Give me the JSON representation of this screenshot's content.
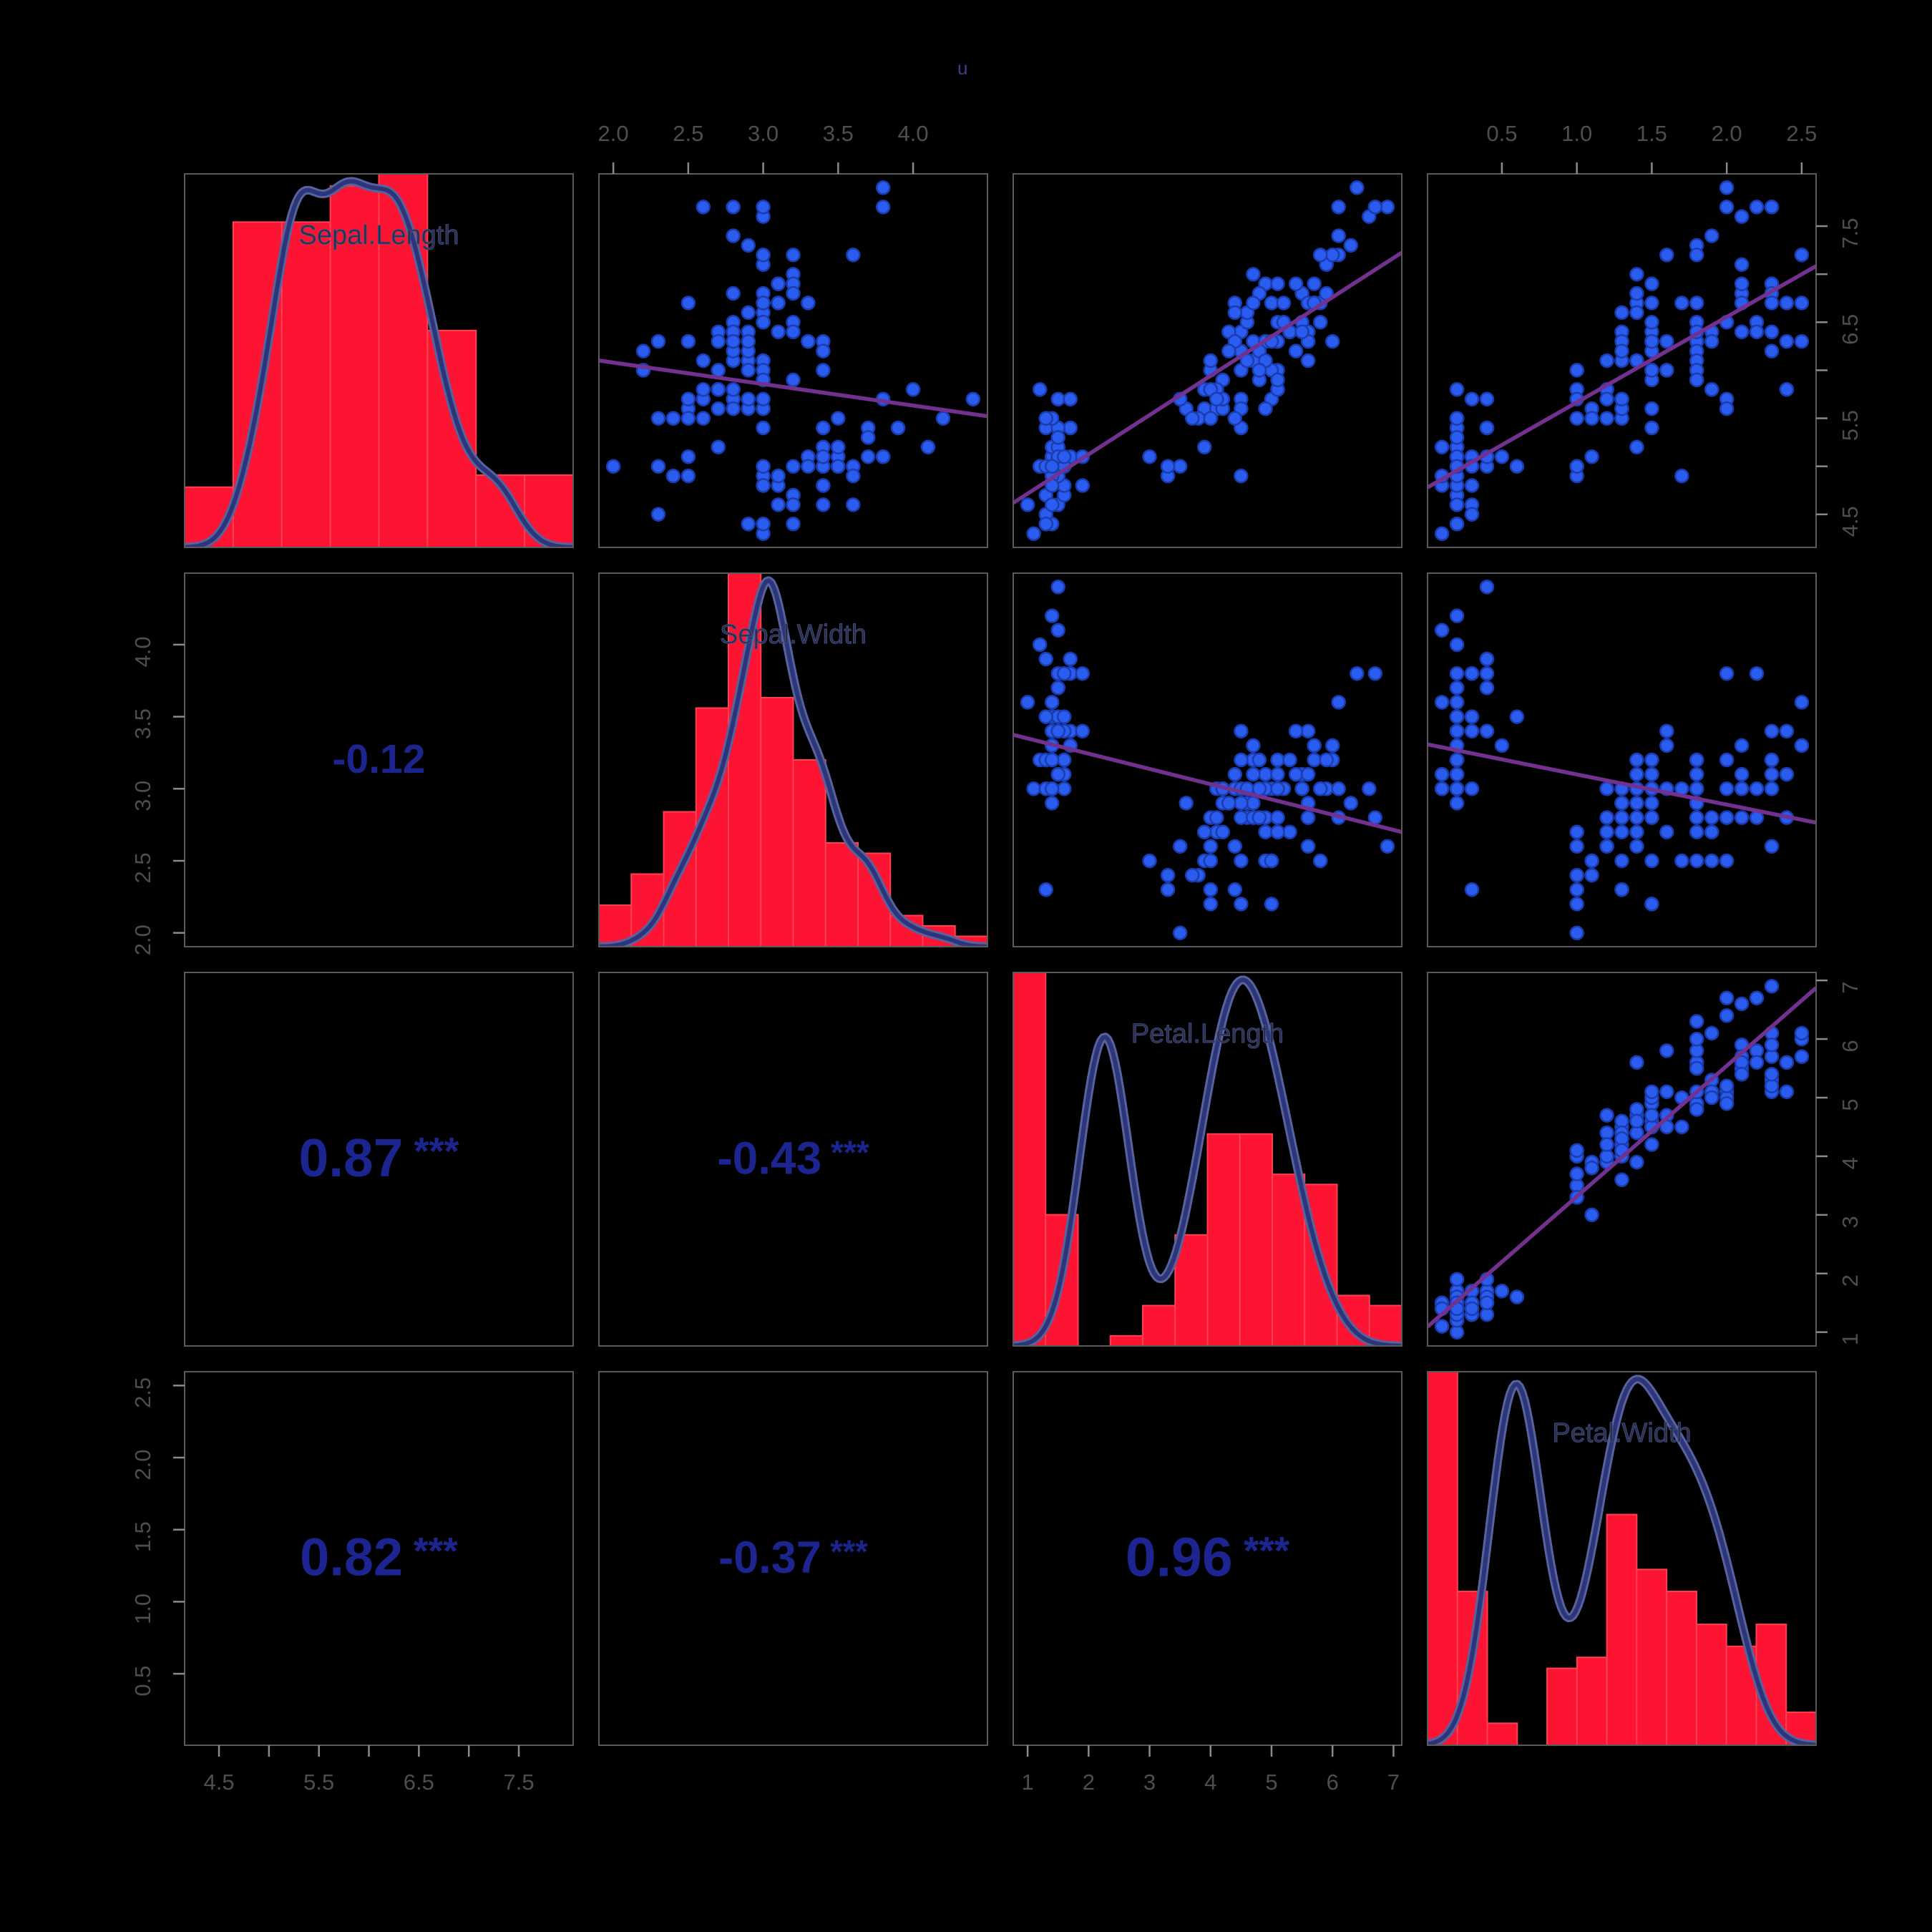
{
  "title_fragment": "u",
  "chart_data": {
    "type": "scatter",
    "subtype": "scatterplot-matrix-pairs-panels",
    "title": "",
    "variables": [
      "Sepal.Length",
      "Sepal.Width",
      "Petal.Length",
      "Petal.Width"
    ],
    "diagonal": "histogram-with-density",
    "upper_triangle": "scatter-with-regression-line",
    "lower_triangle": "correlation-values",
    "observations": {
      "Sepal.Length": [
        5.1,
        4.9,
        4.7,
        4.6,
        5.0,
        5.4,
        4.6,
        5.0,
        4.4,
        4.9,
        5.4,
        4.8,
        4.8,
        4.3,
        5.8,
        5.7,
        5.4,
        5.1,
        5.7,
        5.1,
        5.4,
        5.1,
        4.6,
        5.1,
        4.8,
        5.0,
        5.0,
        5.2,
        5.2,
        4.7,
        4.8,
        5.4,
        5.2,
        5.5,
        4.9,
        5.0,
        5.5,
        4.9,
        4.4,
        5.1,
        5.0,
        4.5,
        4.4,
        5.0,
        5.1,
        4.8,
        5.1,
        4.6,
        5.3,
        5.0,
        7.0,
        6.4,
        6.9,
        5.5,
        6.5,
        5.7,
        6.3,
        4.9,
        6.6,
        5.2,
        5.0,
        5.9,
        6.0,
        6.1,
        5.6,
        6.7,
        5.6,
        5.8,
        6.2,
        5.6,
        5.9,
        6.1,
        6.3,
        6.1,
        6.4,
        6.6,
        6.8,
        6.7,
        6.0,
        5.7,
        5.5,
        5.5,
        5.8,
        6.0,
        5.4,
        6.0,
        6.7,
        6.3,
        5.6,
        5.5,
        5.5,
        6.1,
        5.8,
        5.0,
        5.6,
        5.7,
        5.7,
        6.2,
        5.1,
        5.7,
        6.3,
        5.8,
        7.1,
        6.3,
        6.5,
        7.6,
        4.9,
        7.3,
        6.7,
        7.2,
        6.5,
        6.4,
        6.8,
        5.7,
        5.8,
        6.4,
        6.5,
        7.7,
        7.7,
        6.0,
        6.9,
        5.6,
        7.7,
        6.3,
        6.7,
        7.2,
        6.2,
        6.1,
        6.4,
        7.2,
        7.4,
        7.9,
        6.4,
        6.3,
        6.1,
        7.7,
        6.3,
        6.4,
        6.0,
        6.9,
        6.7,
        6.9,
        5.8,
        6.8,
        6.7,
        6.7,
        6.3,
        6.5,
        6.2,
        5.9
      ],
      "Sepal.Width": [
        3.5,
        3.0,
        3.2,
        3.1,
        3.6,
        3.9,
        3.4,
        3.4,
        2.9,
        3.1,
        3.7,
        3.4,
        3.0,
        3.0,
        4.0,
        4.4,
        3.9,
        3.5,
        3.8,
        3.8,
        3.4,
        3.7,
        3.6,
        3.3,
        3.4,
        3.0,
        3.4,
        3.5,
        3.4,
        3.2,
        3.1,
        3.4,
        4.1,
        4.2,
        3.1,
        3.2,
        3.5,
        3.6,
        3.0,
        3.4,
        3.5,
        2.3,
        3.2,
        3.5,
        3.8,
        3.0,
        3.8,
        3.2,
        3.7,
        3.3,
        3.2,
        3.2,
        3.1,
        2.3,
        2.8,
        2.8,
        3.3,
        2.4,
        2.9,
        2.7,
        2.0,
        3.0,
        2.2,
        2.9,
        2.9,
        3.1,
        3.0,
        2.7,
        2.2,
        2.5,
        3.2,
        2.8,
        2.5,
        2.8,
        2.9,
        3.0,
        2.8,
        3.0,
        2.9,
        2.6,
        2.4,
        2.4,
        2.7,
        2.7,
        3.0,
        3.4,
        3.1,
        2.3,
        3.0,
        2.5,
        2.6,
        3.0,
        2.6,
        2.3,
        2.7,
        3.0,
        2.9,
        2.9,
        2.5,
        2.8,
        3.3,
        2.7,
        3.0,
        2.9,
        3.0,
        3.0,
        2.5,
        2.9,
        2.5,
        3.6,
        3.2,
        2.7,
        3.0,
        2.5,
        2.8,
        3.2,
        3.0,
        3.8,
        2.6,
        2.2,
        3.2,
        2.8,
        2.8,
        2.7,
        3.3,
        3.2,
        2.8,
        3.0,
        2.8,
        3.0,
        2.8,
        3.8,
        2.8,
        2.8,
        2.6,
        3.0,
        3.4,
        3.1,
        3.0,
        3.1,
        3.1,
        3.1,
        2.7,
        3.2,
        3.3,
        3.0,
        2.5,
        3.0,
        3.4,
        3.0
      ],
      "Petal.Length": [
        1.4,
        1.4,
        1.3,
        1.5,
        1.4,
        1.7,
        1.4,
        1.5,
        1.4,
        1.5,
        1.5,
        1.6,
        1.4,
        1.1,
        1.2,
        1.5,
        1.3,
        1.4,
        1.7,
        1.5,
        1.7,
        1.5,
        1.0,
        1.7,
        1.9,
        1.6,
        1.6,
        1.5,
        1.4,
        1.6,
        1.6,
        1.5,
        1.5,
        1.4,
        1.5,
        1.2,
        1.3,
        1.4,
        1.3,
        1.5,
        1.3,
        1.3,
        1.3,
        1.6,
        1.9,
        1.4,
        1.6,
        1.4,
        1.5,
        1.4,
        4.7,
        4.5,
        4.9,
        4.0,
        4.6,
        4.5,
        4.7,
        3.3,
        4.6,
        3.9,
        3.5,
        4.2,
        4.0,
        4.7,
        3.6,
        4.4,
        4.5,
        4.1,
        4.5,
        3.9,
        4.8,
        4.0,
        4.9,
        4.7,
        4.3,
        4.4,
        4.8,
        5.0,
        4.5,
        3.5,
        3.8,
        3.7,
        3.9,
        5.1,
        4.5,
        4.5,
        4.7,
        4.4,
        4.1,
        4.0,
        4.4,
        4.6,
        4.0,
        3.3,
        4.2,
        4.2,
        4.2,
        4.3,
        3.0,
        4.1,
        6.0,
        5.1,
        5.9,
        5.6,
        5.8,
        6.6,
        4.5,
        6.3,
        5.8,
        6.1,
        5.1,
        5.3,
        5.5,
        5.0,
        5.1,
        5.3,
        5.5,
        6.7,
        6.9,
        5.0,
        5.7,
        4.9,
        6.7,
        4.9,
        5.7,
        6.0,
        4.8,
        4.9,
        5.6,
        5.8,
        6.1,
        6.4,
        5.6,
        5.1,
        5.6,
        6.1,
        5.6,
        5.5,
        4.8,
        5.4,
        5.6,
        5.1,
        5.1,
        5.9,
        5.7,
        5.2,
        5.0,
        5.2,
        5.4,
        5.1
      ],
      "Petal.Width": [
        0.2,
        0.2,
        0.2,
        0.2,
        0.2,
        0.4,
        0.3,
        0.2,
        0.2,
        0.1,
        0.2,
        0.2,
        0.1,
        0.1,
        0.2,
        0.4,
        0.4,
        0.3,
        0.3,
        0.3,
        0.2,
        0.4,
        0.2,
        0.5,
        0.2,
        0.2,
        0.4,
        0.2,
        0.2,
        0.2,
        0.2,
        0.4,
        0.1,
        0.2,
        0.2,
        0.2,
        0.2,
        0.1,
        0.2,
        0.2,
        0.3,
        0.3,
        0.2,
        0.6,
        0.4,
        0.3,
        0.2,
        0.2,
        0.2,
        0.2,
        1.4,
        1.5,
        1.5,
        1.3,
        1.5,
        1.3,
        1.6,
        1.0,
        1.3,
        1.4,
        1.0,
        1.5,
        1.0,
        1.4,
        1.3,
        1.4,
        1.5,
        1.0,
        1.5,
        1.1,
        1.8,
        1.3,
        1.5,
        1.2,
        1.3,
        1.4,
        1.4,
        1.7,
        1.5,
        1.0,
        1.1,
        1.0,
        1.2,
        1.6,
        1.5,
        1.6,
        1.5,
        1.3,
        1.3,
        1.3,
        1.2,
        1.4,
        1.2,
        1.0,
        1.3,
        1.2,
        1.3,
        1.3,
        1.1,
        1.3,
        2.5,
        1.9,
        2.1,
        1.8,
        2.2,
        2.1,
        1.7,
        1.8,
        1.8,
        2.5,
        2.0,
        1.9,
        2.1,
        2.0,
        2.4,
        2.3,
        1.8,
        2.2,
        2.3,
        1.5,
        2.3,
        2.0,
        2.0,
        1.8,
        2.1,
        1.8,
        1.8,
        1.8,
        2.1,
        1.6,
        1.9,
        2.0,
        2.2,
        1.5,
        1.4,
        2.3,
        2.4,
        1.8,
        1.8,
        2.1,
        2.4,
        2.3,
        1.9,
        2.3,
        2.5,
        2.3,
        1.9,
        2.0,
        2.3,
        1.8
      ]
    },
    "correlations": [
      {
        "row_var": "Sepal.Width",
        "col_var": "Sepal.Length",
        "value": "-0.12",
        "stars": ""
      },
      {
        "row_var": "Petal.Length",
        "col_var": "Sepal.Length",
        "value": "0.87",
        "stars": "***"
      },
      {
        "row_var": "Petal.Length",
        "col_var": "Sepal.Width",
        "value": "-0.43",
        "stars": "***"
      },
      {
        "row_var": "Petal.Width",
        "col_var": "Sepal.Length",
        "value": "0.82",
        "stars": "***"
      },
      {
        "row_var": "Petal.Width",
        "col_var": "Sepal.Width",
        "value": "-0.37",
        "stars": "***"
      },
      {
        "row_var": "Petal.Width",
        "col_var": "Petal.Length",
        "value": "0.96",
        "stars": "***"
      }
    ],
    "histogram_breaks": {
      "Sepal.Length": {
        "start": 4.0,
        "end": 8.0,
        "step": 0.5
      },
      "Sepal.Width": {
        "start": 2.0,
        "end": 4.4,
        "step": 0.2
      },
      "Petal.Length": {
        "start": 1.0,
        "end": 7.0,
        "step": 0.5
      },
      "Petal.Width": {
        "start": 0.0,
        "end": 2.6,
        "step": 0.2
      }
    },
    "axes": {
      "top": [
        {
          "column": 2,
          "variable": "Sepal.Width",
          "ticks": [
            2.0,
            2.5,
            3.0,
            3.5,
            4.0
          ],
          "labels": [
            "2.0",
            "2.5",
            "3.0",
            "3.5",
            "4.0"
          ]
        },
        {
          "column": 4,
          "variable": "Petal.Width",
          "ticks": [
            0.5,
            1.0,
            1.5,
            2.0,
            2.5
          ],
          "labels": [
            "0.5",
            "1.0",
            "1.5",
            "2.0",
            "2.5"
          ]
        }
      ],
      "bottom": [
        {
          "column": 1,
          "variable": "Sepal.Length",
          "ticks": [
            4.5,
            5.0,
            5.5,
            6.0,
            6.5,
            7.0,
            7.5
          ],
          "labels": [
            "4.5",
            "",
            "5.5",
            "",
            "6.5",
            "",
            "7.5"
          ]
        },
        {
          "column": 3,
          "variable": "Petal.Length",
          "ticks": [
            1,
            2,
            3,
            4,
            5,
            6,
            7
          ],
          "labels": [
            "1",
            "2",
            "3",
            "4",
            "5",
            "6",
            "7"
          ]
        }
      ],
      "left": [
        {
          "row": 2,
          "variable": "Sepal.Width",
          "ticks": [
            2.0,
            2.5,
            3.0,
            3.5,
            4.0
          ],
          "labels": [
            "2.0",
            "2.5",
            "3.0",
            "3.5",
            "4.0"
          ]
        },
        {
          "row": 4,
          "variable": "Petal.Width",
          "ticks": [
            0.5,
            1.0,
            1.5,
            2.0,
            2.5
          ],
          "labels": [
            "0.5",
            "1.0",
            "1.5",
            "2.0",
            "2.5"
          ]
        }
      ],
      "right": [
        {
          "row": 1,
          "variable": "Sepal.Length",
          "ticks": [
            4.5,
            5.0,
            5.5,
            6.0,
            6.5,
            7.0,
            7.5
          ],
          "labels": [
            "4.5",
            "",
            "5.5",
            "",
            "6.5",
            "",
            "7.5"
          ]
        },
        {
          "row": 3,
          "variable": "Petal.Length",
          "ticks": [
            1,
            2,
            3,
            4,
            5,
            6,
            7
          ],
          "labels": [
            "1",
            "2",
            "3",
            "4",
            "5",
            "6",
            "7"
          ]
        }
      ]
    },
    "colors": {
      "background": "#000000",
      "histogram_fill": "#fc1432",
      "histogram_edge": "#ff4050",
      "density_line_core": "#2c3578",
      "density_line_halo": "#57629f",
      "point_fill": "#2a5cf0",
      "point_edge": "#1b3cae",
      "regression_line": "#72308f",
      "correlation_text": "#1c2490",
      "diag_label_text": "#2e2e4a",
      "axis_text": "#4e4e4e",
      "panel_border": "#5a5a5a",
      "tick_mark": "#8a8a8a"
    },
    "grid": "off",
    "legend": "none"
  }
}
